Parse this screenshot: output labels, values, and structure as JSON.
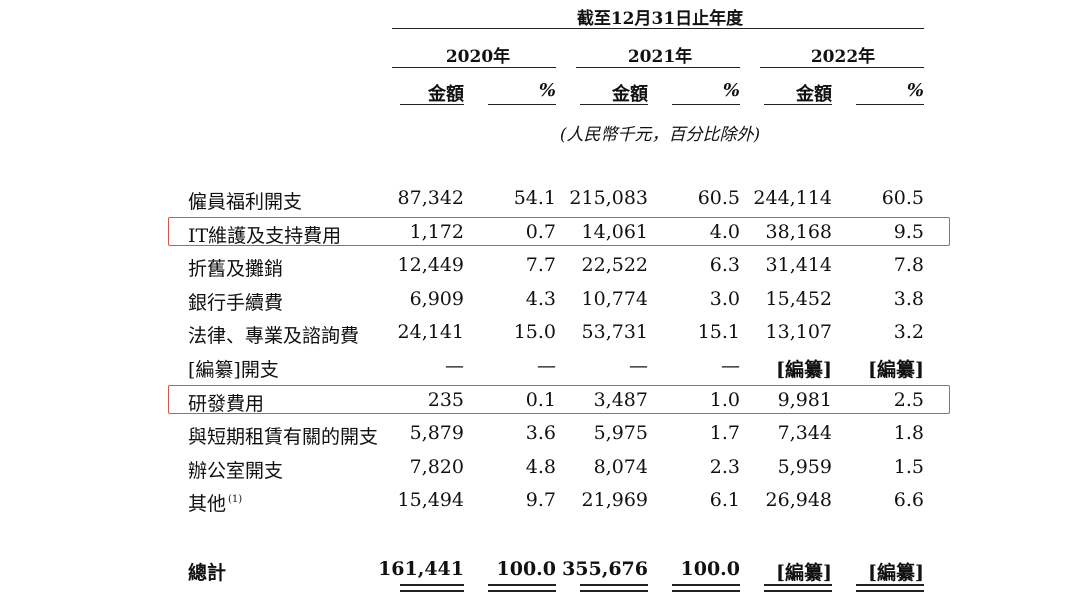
{
  "header": {
    "period_title": "截至12月31日止年度",
    "years": [
      "2020年",
      "2021年",
      "2022年"
    ],
    "amount_label": "金額",
    "percent_label": "%",
    "unit_note": "(人民幣千元，百分比除外)"
  },
  "rows": [
    {
      "label": "僱員福利開支",
      "footnote": "",
      "values": [
        "87,342",
        "54.1",
        "215,083",
        "60.5",
        "244,114",
        "60.5"
      ],
      "highlighted": false
    },
    {
      "label": "IT維護及支持費用",
      "footnote": "",
      "values": [
        "1,172",
        "0.7",
        "14,061",
        "4.0",
        "38,168",
        "9.5"
      ],
      "highlighted": true
    },
    {
      "label": "折舊及攤銷",
      "footnote": "",
      "values": [
        "12,449",
        "7.7",
        "22,522",
        "6.3",
        "31,414",
        "7.8"
      ],
      "highlighted": false
    },
    {
      "label": "銀行手續費",
      "footnote": "",
      "values": [
        "6,909",
        "4.3",
        "10,774",
        "3.0",
        "15,452",
        "3.8"
      ],
      "highlighted": false
    },
    {
      "label": "法律、專業及諮詢費",
      "footnote": "",
      "values": [
        "24,141",
        "15.0",
        "53,731",
        "15.1",
        "13,107",
        "3.2"
      ],
      "highlighted": false
    },
    {
      "label": "[編纂]開支",
      "footnote": "",
      "values": [
        "—",
        "—",
        "—",
        "—",
        "[編纂]",
        "[編纂]"
      ],
      "highlighted": false
    },
    {
      "label": "研發費用",
      "footnote": "",
      "values": [
        "235",
        "0.1",
        "3,487",
        "1.0",
        "9,981",
        "2.5"
      ],
      "highlighted": true
    },
    {
      "label": "與短期租賃有關的開支",
      "footnote": "",
      "values": [
        "5,879",
        "3.6",
        "5,975",
        "1.7",
        "7,344",
        "1.8"
      ],
      "highlighted": false
    },
    {
      "label": "辦公室開支",
      "footnote": "",
      "values": [
        "7,820",
        "4.8",
        "8,074",
        "2.3",
        "5,959",
        "1.5"
      ],
      "highlighted": false
    },
    {
      "label": "其他",
      "footnote": "(1)",
      "values": [
        "15,494",
        "9.7",
        "21,969",
        "6.1",
        "26,948",
        "6.6"
      ],
      "highlighted": false
    }
  ],
  "total": {
    "label": "總計",
    "values": [
      "161,441",
      "100.0",
      "355,676",
      "100.0",
      "[編纂]",
      "[編纂]"
    ]
  },
  "highlight_color": "#d9534f"
}
